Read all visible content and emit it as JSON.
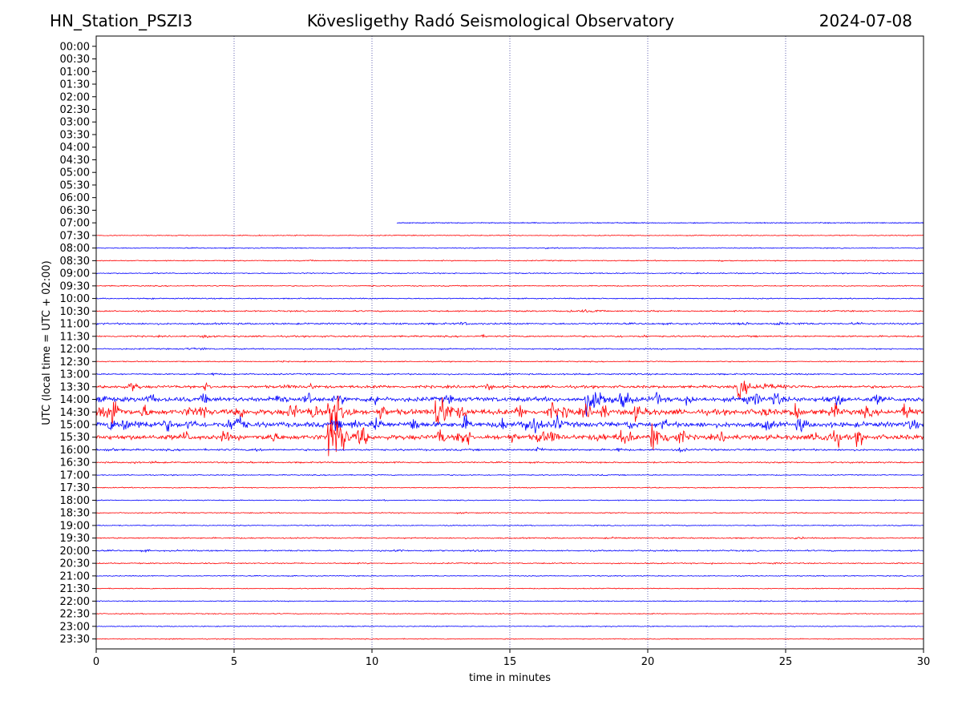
{
  "header": {
    "station": "HN_Station_PSZI3",
    "observatory": "Kövesligethy Radó Seismological Observatory",
    "date": "2024-07-08"
  },
  "colors": {
    "odd_rows": "#0000ff",
    "even_rows": "#ff0000",
    "grid": "#000080"
  },
  "chart_data": {
    "type": "line",
    "title": "Kövesligethy Radó Seismological Observatory",
    "xlabel": "time in minutes",
    "ylabel": "UTC (local time = UTC + 02:00)",
    "xlim": [
      0,
      30
    ],
    "xticks": [
      "0",
      "5",
      "10",
      "15",
      "20",
      "25",
      "30"
    ],
    "vertical_gridlines_minutes": [
      5,
      10,
      15,
      20,
      25
    ],
    "rows": [
      "00:00",
      "00:30",
      "01:00",
      "01:30",
      "02:00",
      "02:30",
      "03:00",
      "03:30",
      "04:00",
      "04:30",
      "05:00",
      "05:30",
      "06:00",
      "06:30",
      "07:00",
      "07:30",
      "08:00",
      "08:30",
      "09:00",
      "09:30",
      "10:00",
      "10:30",
      "11:00",
      "11:30",
      "12:00",
      "12:30",
      "13:00",
      "13:30",
      "14:00",
      "14:30",
      "15:00",
      "15:30",
      "16:00",
      "16:30",
      "17:00",
      "17:30",
      "18:00",
      "18:30",
      "19:00",
      "19:30",
      "20:00",
      "20:30",
      "21:00",
      "21:30",
      "22:00",
      "22:30",
      "23:00",
      "23:30"
    ],
    "data_start": {
      "row": "07:00",
      "minute": 10.9
    },
    "activity_level": [
      0,
      0,
      0,
      0,
      0,
      0,
      0,
      0,
      0,
      0,
      0,
      0,
      0,
      0,
      0.02,
      0.03,
      0.04,
      0.05,
      0.06,
      0.05,
      0.06,
      0.12,
      0.18,
      0.15,
      0.1,
      0.05,
      0.12,
      0.35,
      0.7,
      0.85,
      0.8,
      0.75,
      0.2,
      0.12,
      0.04,
      0.04,
      0.04,
      0.05,
      0.04,
      0.1,
      0.12,
      0.08,
      0.03,
      0.03,
      0.04,
      0.03,
      0.03,
      0.03
    ],
    "events": [
      {
        "row": "14:30",
        "minute": 8.5,
        "amplitude": 1.0
      },
      {
        "row": "14:30",
        "minute": 12.4,
        "amplitude": 0.6
      },
      {
        "row": "15:30",
        "minute": 8.5,
        "amplitude": 0.8
      },
      {
        "row": "15:30",
        "minute": 20.2,
        "amplitude": 0.45
      },
      {
        "row": "14:00",
        "minute": 17.8,
        "amplitude": 0.35
      },
      {
        "row": "13:30",
        "minute": 23.3,
        "amplitude": 0.3
      }
    ]
  }
}
